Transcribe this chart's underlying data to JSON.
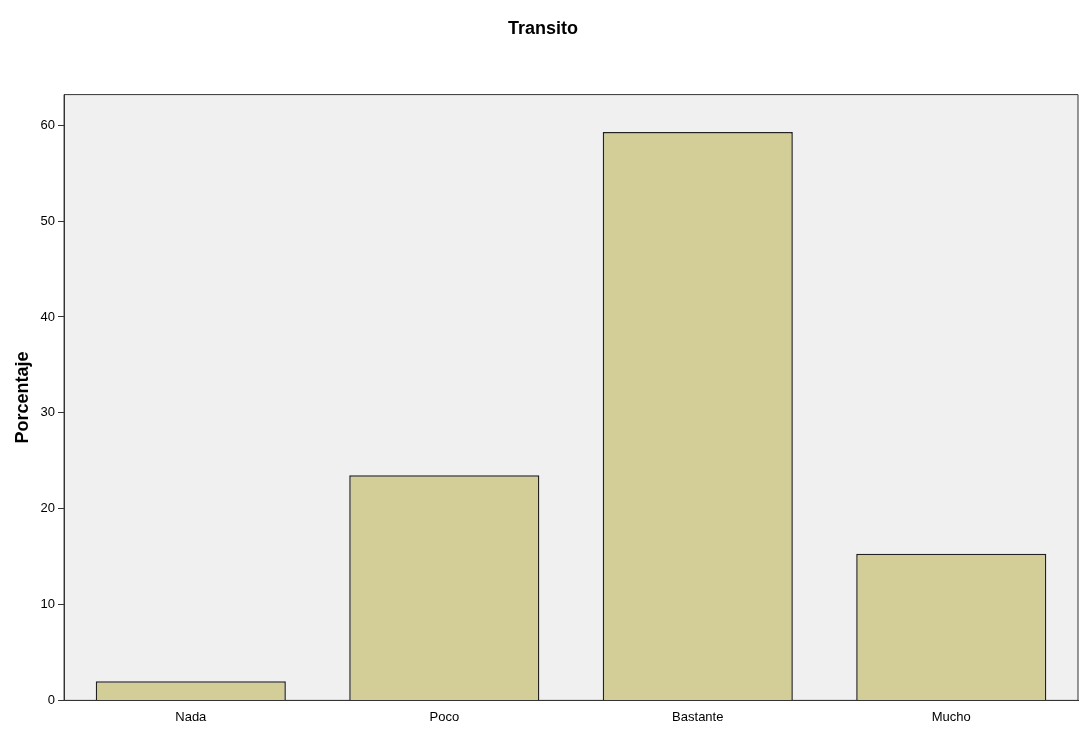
{
  "chart_data": {
    "type": "bar",
    "title": "Transito",
    "ylabel": "Porcentaje",
    "categories": [
      "Nada",
      "Poco",
      "Bastante",
      "Mucho"
    ],
    "values": [
      2.0,
      23.5,
      59.3,
      15.3
    ],
    "color": "#d3ce97",
    "ylim": [
      0,
      63.2
    ],
    "yticks": [
      0,
      10,
      20,
      30,
      40,
      50,
      60
    ],
    "grid": false,
    "legend": false
  }
}
